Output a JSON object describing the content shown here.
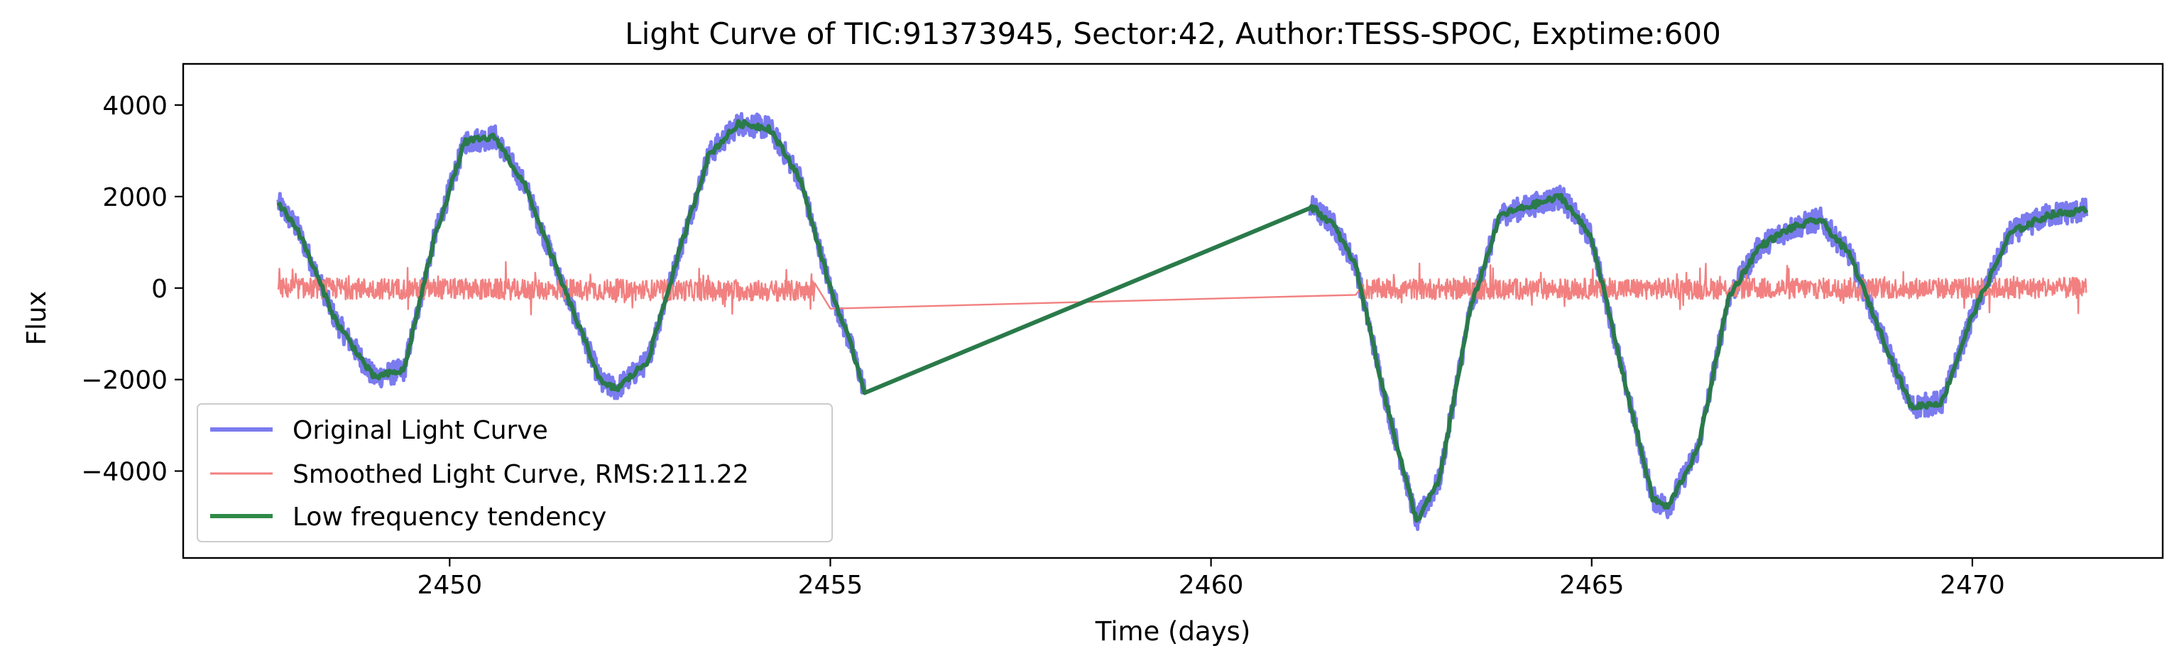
{
  "chart_data": {
    "type": "line",
    "title": "Light Curve of TIC:91373945, Sector:42, Author:TESS-SPOC, Exptime:600",
    "xlabel": "Time (days)",
    "ylabel": "Flux",
    "xlim": [
      2446.5,
      2472.5
    ],
    "ylim": [
      -5900,
      4900
    ],
    "xticks": [
      2450,
      2455,
      2460,
      2465,
      2470
    ],
    "xtick_labels": [
      "2450",
      "2455",
      "2460",
      "2465",
      "2470"
    ],
    "yticks": [
      -4000,
      -2000,
      0,
      2000,
      4000
    ],
    "ytick_labels": [
      "−4000",
      "−2000",
      "0",
      "2000",
      "4000"
    ],
    "grid": false,
    "legend_position": "lower-left",
    "series": [
      {
        "name": "Original Light Curve",
        "color": "#7b7bf0",
        "x": [
          2447.75,
          2448.0,
          2448.5,
          2449.0,
          2449.4,
          2449.8,
          2450.2,
          2450.6,
          2451.0,
          2451.5,
          2452.0,
          2452.2,
          2452.6,
          2453.0,
          2453.4,
          2453.8,
          2454.2,
          2454.6,
          2455.0,
          2455.3,
          2455.45,
          2461.3,
          2461.6,
          2461.9,
          2462.3,
          2462.7,
          2463.0,
          2463.4,
          2463.8,
          2464.2,
          2464.6,
          2465.0,
          2465.4,
          2465.8,
          2466.0,
          2466.4,
          2466.8,
          2467.2,
          2467.6,
          2468.0,
          2468.4,
          2468.8,
          2469.2,
          2469.6,
          2470.0,
          2470.5,
          2471.0,
          2471.5
        ],
        "y": [
          1850,
          1300,
          -700,
          -1950,
          -1800,
          1100,
          3200,
          3300,
          2200,
          0,
          -2100,
          -2200,
          -1600,
          700,
          2900,
          3600,
          3500,
          2400,
          0,
          -1400,
          -2250,
          1800,
          1400,
          500,
          -2500,
          -5100,
          -4200,
          -500,
          1600,
          1800,
          2000,
          1100,
          -1800,
          -4600,
          -4800,
          -3500,
          -200,
          900,
          1300,
          1500,
          700,
          -1000,
          -2600,
          -2500,
          -600,
          1200,
          1600,
          1700
        ]
      },
      {
        "name": "Smoothed Light Curve, RMS:211.22",
        "color": "#f28080",
        "x": [
          2447.75,
          2455.0,
          2461.9,
          2471.5
        ],
        "y": [
          0,
          -450,
          -150,
          0
        ]
      },
      {
        "name": "Low frequency tendency",
        "color": "#2a7a4a",
        "x": [
          2447.75,
          2448.0,
          2448.5,
          2449.0,
          2449.4,
          2449.8,
          2450.2,
          2450.6,
          2451.0,
          2451.5,
          2452.0,
          2452.2,
          2452.6,
          2453.0,
          2453.4,
          2453.8,
          2454.2,
          2454.6,
          2455.0,
          2455.3,
          2455.45,
          2461.3,
          2461.6,
          2461.9,
          2462.3,
          2462.7,
          2463.0,
          2463.4,
          2463.8,
          2464.2,
          2464.6,
          2465.0,
          2465.4,
          2465.8,
          2466.0,
          2466.4,
          2466.8,
          2467.2,
          2467.6,
          2468.0,
          2468.4,
          2468.8,
          2469.2,
          2469.6,
          2470.0,
          2470.5,
          2471.0,
          2471.5
        ],
        "y": [
          1850,
          1300,
          -700,
          -1950,
          -1800,
          1100,
          3200,
          3300,
          2200,
          0,
          -2100,
          -2200,
          -1600,
          700,
          2900,
          3600,
          3500,
          2400,
          0,
          -1400,
          -2250,
          1800,
          1400,
          500,
          -2500,
          -5100,
          -4200,
          -500,
          1600,
          1800,
          2000,
          1100,
          -1800,
          -4600,
          -4800,
          -3500,
          -200,
          900,
          1300,
          1500,
          700,
          -1000,
          -2600,
          -2500,
          -600,
          1200,
          1600,
          1700
        ]
      }
    ]
  }
}
